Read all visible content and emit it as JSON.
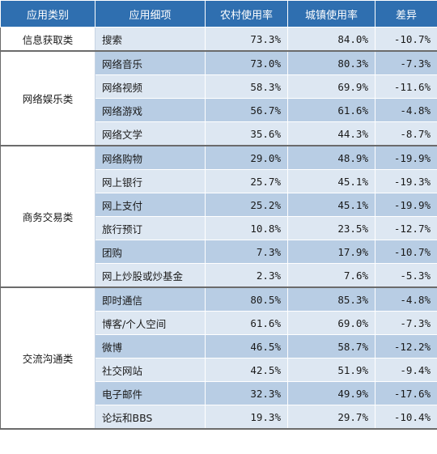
{
  "headers": [
    "应用类别",
    "应用细项",
    "农村使用率",
    "城镇使用率",
    "差异"
  ],
  "groups": [
    {
      "category": "信息获取类",
      "rows": [
        {
          "app": "搜索",
          "rural": "73.3%",
          "urban": "84.0%",
          "diff": "-10.7%"
        }
      ]
    },
    {
      "category": "网络娱乐类",
      "rows": [
        {
          "app": "网络音乐",
          "rural": "73.0%",
          "urban": "80.3%",
          "diff": "-7.3%"
        },
        {
          "app": "网络视频",
          "rural": "58.3%",
          "urban": "69.9%",
          "diff": "-11.6%"
        },
        {
          "app": "网络游戏",
          "rural": "56.7%",
          "urban": "61.6%",
          "diff": "-4.8%"
        },
        {
          "app": "网络文学",
          "rural": "35.6%",
          "urban": "44.3%",
          "diff": "-8.7%"
        }
      ]
    },
    {
      "category": "商务交易类",
      "rows": [
        {
          "app": "网络购物",
          "rural": "29.0%",
          "urban": "48.9%",
          "diff": "-19.9%"
        },
        {
          "app": "网上银行",
          "rural": "25.7%",
          "urban": "45.1%",
          "diff": "-19.3%"
        },
        {
          "app": "网上支付",
          "rural": "25.2%",
          "urban": "45.1%",
          "diff": "-19.9%"
        },
        {
          "app": "旅行预订",
          "rural": "10.8%",
          "urban": "23.5%",
          "diff": "-12.7%"
        },
        {
          "app": "团购",
          "rural": "7.3%",
          "urban": "17.9%",
          "diff": "-10.7%"
        },
        {
          "app": "网上炒股或炒基金",
          "rural": "2.3%",
          "urban": "7.6%",
          "diff": "-5.3%"
        }
      ]
    },
    {
      "category": "交流沟通类",
      "rows": [
        {
          "app": "即时通信",
          "rural": "80.5%",
          "urban": "85.3%",
          "diff": "-4.8%"
        },
        {
          "app": "博客/个人空间",
          "rural": "61.6%",
          "urban": "69.0%",
          "diff": "-7.3%"
        },
        {
          "app": "微博",
          "rural": "46.5%",
          "urban": "58.7%",
          "diff": "-12.2%"
        },
        {
          "app": "社交网站",
          "rural": "42.5%",
          "urban": "51.9%",
          "diff": "-9.4%"
        },
        {
          "app": "电子邮件",
          "rural": "32.3%",
          "urban": "49.9%",
          "diff": "-17.6%"
        },
        {
          "app": "论坛和BBS",
          "rural": "19.3%",
          "urban": "29.7%",
          "diff": "-10.4%"
        }
      ]
    }
  ],
  "colors": {
    "header": "#2f6fb0",
    "row_light": "#dde7f2",
    "row_dark": "#b8cde4"
  }
}
